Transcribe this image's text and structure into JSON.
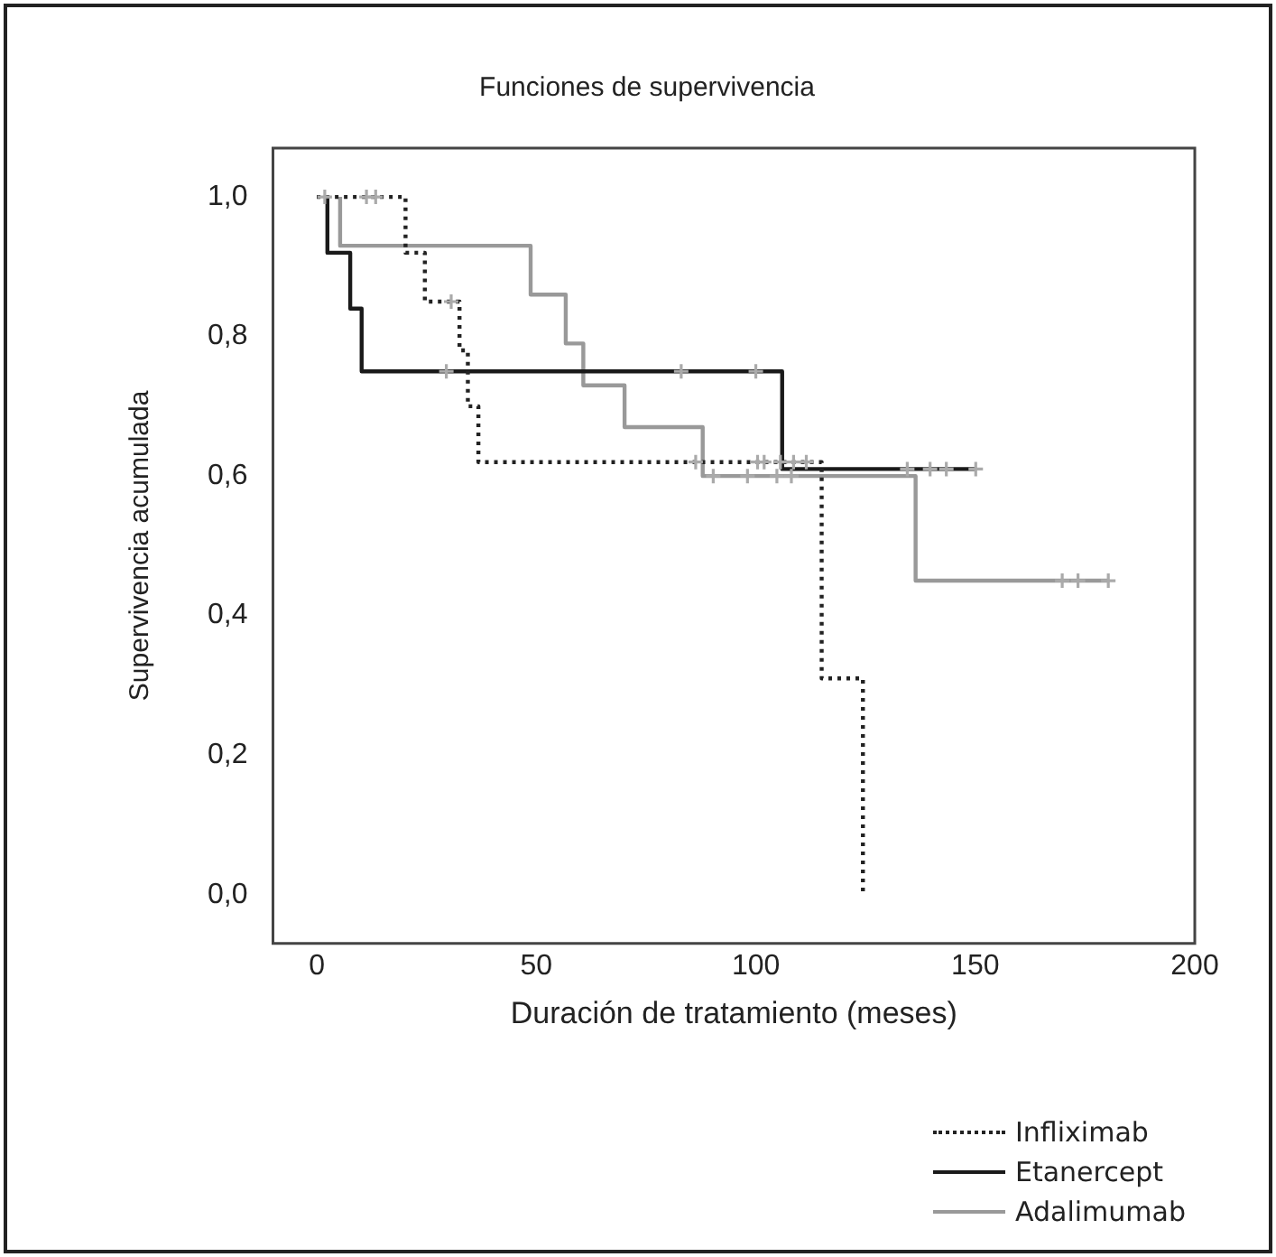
{
  "chart_data": {
    "type": "step",
    "title": "Funciones de supervivencia",
    "xlabel": "Duración de tratamiento (meses)",
    "ylabel": "Supervivencia acumulada",
    "xlim": [
      -10,
      200
    ],
    "xticks": [
      0,
      50,
      100,
      150,
      200
    ],
    "ylim": [
      -0.07,
      1.07
    ],
    "yticks": [
      {
        "value": 0,
        "label": "0,0"
      },
      {
        "value": 0.2,
        "label": "0,2"
      },
      {
        "value": 0.4,
        "label": "0,4"
      },
      {
        "value": 0.6,
        "label": "0,6"
      },
      {
        "value": 0.8,
        "label": "0,8"
      },
      {
        "value": 1,
        "label": "1,0"
      }
    ],
    "grid": false,
    "legend": "bottom right",
    "series": [
      {
        "name": "Infliximab",
        "color": "#222222",
        "line_style": "dotted",
        "x": [
          0,
          20.2,
          24.6,
          32.5,
          34.4,
          36.8,
          115,
          124.4
        ],
        "values": [
          1,
          0.92,
          0.85,
          0.78,
          0.7,
          0.62,
          0.31,
          0
        ]
      },
      {
        "name": "Etanercept",
        "color": "#1a1a1a",
        "line_style": "solid",
        "x": [
          2.4,
          2.4,
          7.6,
          10.2,
          106,
          150.1
        ],
        "values": [
          1,
          0.92,
          0.84,
          0.75,
          0.61,
          0.61
        ]
      },
      {
        "name": "Adalimumab",
        "color": "#999999",
        "line_style": "solid",
        "x": [
          5.3,
          5.3,
          48.7,
          56.7,
          60.7,
          70.1,
          87.9,
          136.4,
          180.5
        ],
        "values": [
          1,
          0.93,
          0.86,
          0.79,
          0.73,
          0.67,
          0.6,
          0.45,
          0.45
        ]
      },
      {
        "type": "scatter",
        "marker": "cross",
        "color": "#aaaaaa",
        "x": [
          1.8,
          11.3,
          13.4,
          30.6,
          86.3,
          100.4,
          101.9,
          105.6,
          108.6,
          111.5
        ],
        "values": [
          1,
          1,
          1,
          0.85,
          0.62,
          0.62,
          0.62,
          0.62,
          0.62,
          0.62
        ]
      },
      {
        "type": "scatter",
        "marker": "cross",
        "color": "#aaaaaa",
        "x": [
          29.5,
          83,
          100,
          134.5,
          139.7,
          143.4,
          150.1
        ],
        "values": [
          0.75,
          0.75,
          0.75,
          0.61,
          0.61,
          0.61,
          0.61
        ]
      },
      {
        "type": "scatter",
        "marker": "cross",
        "color": "#aaaaaa",
        "x": [
          90.3,
          98.1,
          104.8,
          108.1,
          169.8,
          173.4,
          180.3
        ],
        "values": [
          0.6,
          0.6,
          0.6,
          0.6,
          0.45,
          0.45,
          0.45
        ]
      }
    ]
  }
}
